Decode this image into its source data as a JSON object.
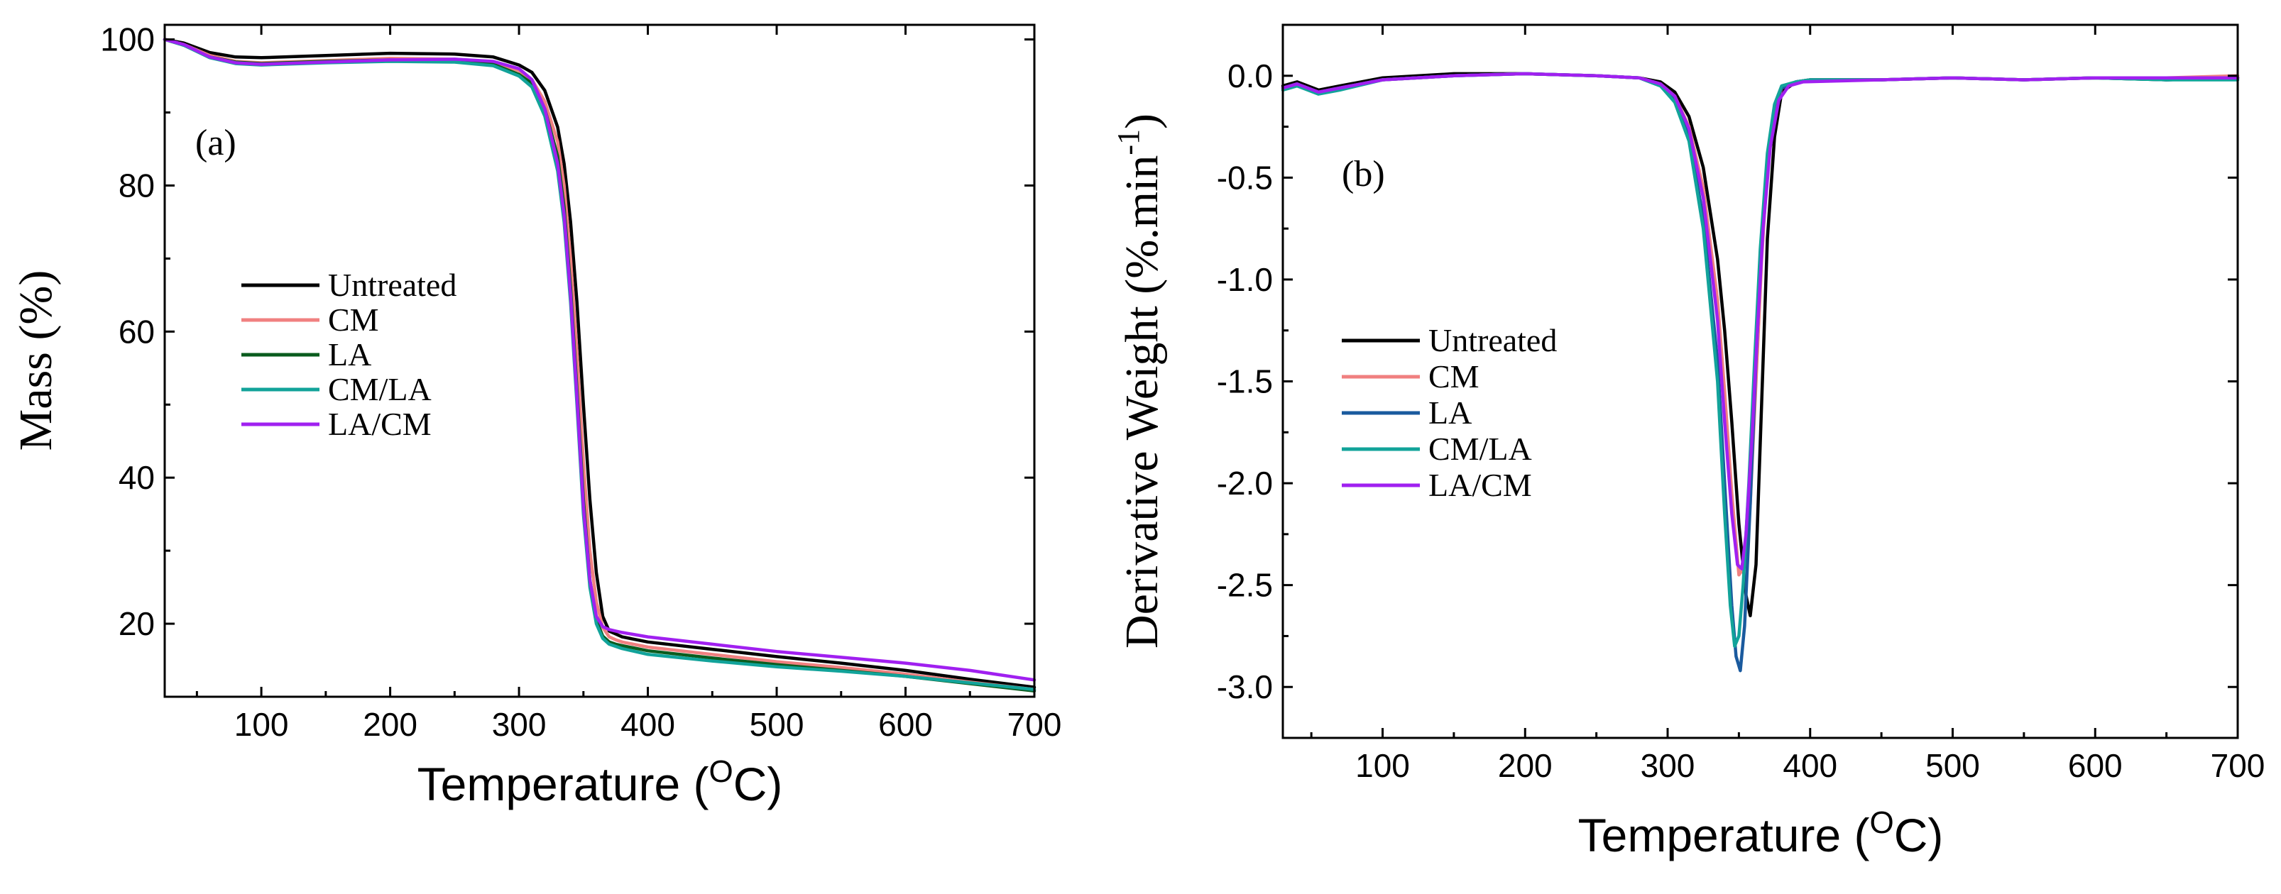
{
  "chart_data": [
    {
      "type": "line",
      "panel_label": "(a)",
      "xlabel": "Temperature (",
      "xlabel_sup": "O",
      "xlabel_end": "C)",
      "ylabel": "Mass (%)",
      "xlim": [
        25,
        700
      ],
      "ylim": [
        10,
        102
      ],
      "xticks": [
        100,
        200,
        300,
        400,
        500,
        600,
        700
      ],
      "yticks": [
        20,
        40,
        60,
        80,
        100
      ],
      "legend_location": "center-left",
      "series": [
        {
          "name": "Untreated",
          "color": "#000000",
          "x": [
            25,
            40,
            60,
            80,
            100,
            150,
            200,
            250,
            280,
            300,
            310,
            320,
            330,
            335,
            340,
            345,
            350,
            355,
            360,
            365,
            370,
            375,
            380,
            400,
            450,
            500,
            550,
            600,
            650,
            700
          ],
          "y": [
            100,
            99.5,
            98.2,
            97.6,
            97.5,
            97.8,
            98.1,
            98,
            97.6,
            96.5,
            95.5,
            93,
            88,
            83,
            75,
            64,
            50,
            37,
            27,
            21,
            19,
            18.6,
            18.2,
            17.5,
            16.5,
            15.5,
            14.6,
            13.6,
            12.4,
            11.3
          ]
        },
        {
          "name": "CM",
          "color": "#f08080",
          "x": [
            25,
            40,
            60,
            80,
            100,
            150,
            200,
            250,
            280,
            300,
            310,
            320,
            330,
            335,
            340,
            345,
            350,
            355,
            360,
            365,
            370,
            375,
            380,
            400,
            450,
            500,
            550,
            600,
            650,
            700
          ],
          "y": [
            100,
            99.3,
            97.8,
            97,
            96.8,
            97.1,
            97.4,
            97.3,
            96.9,
            95.7,
            94.5,
            91.5,
            86,
            80,
            70,
            57,
            42,
            30,
            23,
            19.5,
            18.2,
            17.8,
            17.5,
            16.8,
            15.8,
            14.8,
            14,
            13.1,
            12,
            11
          ]
        },
        {
          "name": "LA",
          "color": "#0a5c1e",
          "x": [
            25,
            40,
            60,
            80,
            100,
            150,
            200,
            250,
            280,
            300,
            310,
            320,
            330,
            335,
            340,
            345,
            350,
            355,
            360,
            365,
            370,
            375,
            380,
            400,
            450,
            500,
            550,
            600,
            650,
            700
          ],
          "y": [
            100,
            99.2,
            97.6,
            96.9,
            96.7,
            97,
            97.2,
            97.1,
            96.6,
            95.2,
            94,
            90.5,
            84,
            77,
            66,
            52,
            37,
            26,
            20.5,
            18.3,
            17.5,
            17.2,
            17,
            16.3,
            15.3,
            14.4,
            13.6,
            12.8,
            11.8,
            10.8
          ]
        },
        {
          "name": "CM/LA",
          "color": "#12a39a",
          "x": [
            25,
            40,
            60,
            80,
            100,
            150,
            200,
            250,
            280,
            300,
            310,
            320,
            330,
            335,
            340,
            345,
            350,
            355,
            360,
            365,
            370,
            375,
            380,
            400,
            450,
            500,
            550,
            600,
            650,
            700
          ],
          "y": [
            100,
            99.2,
            97.5,
            96.7,
            96.5,
            96.8,
            97,
            96.9,
            96.4,
            95,
            93.5,
            89.5,
            82,
            75,
            64,
            50,
            35,
            25,
            20,
            18,
            17.2,
            16.9,
            16.6,
            15.8,
            14.9,
            14.1,
            13.5,
            12.8,
            11.9,
            11
          ]
        },
        {
          "name": "LA/CM",
          "color": "#a020f0",
          "x": [
            25,
            40,
            60,
            80,
            100,
            150,
            200,
            250,
            280,
            300,
            310,
            320,
            330,
            335,
            340,
            345,
            350,
            355,
            360,
            365,
            370,
            375,
            380,
            400,
            450,
            500,
            550,
            600,
            650,
            700
          ],
          "y": [
            100,
            99.3,
            97.6,
            96.8,
            96.6,
            96.9,
            97.2,
            97.3,
            97,
            96,
            94.5,
            90.5,
            83,
            76,
            65,
            51,
            36,
            26,
            21,
            19.6,
            19.2,
            19,
            18.8,
            18.2,
            17.2,
            16.2,
            15.4,
            14.6,
            13.6,
            12.3
          ]
        }
      ]
    },
    {
      "type": "line",
      "panel_label": "(b)",
      "xlabel": "Temperature (",
      "xlabel_sup": "O",
      "xlabel_end": "C)",
      "ylabel": "Derivative Weight (%.min",
      "ylabel_sup": "-1",
      "ylabel_end": ")",
      "xlim": [
        30,
        700
      ],
      "ylim": [
        -3.25,
        0.25
      ],
      "xticks": [
        100,
        200,
        300,
        400,
        500,
        600,
        700
      ],
      "yticks": [
        0.0,
        -0.5,
        -1.0,
        -1.5,
        -2.0,
        -2.5,
        -3.0
      ],
      "ytick_labels": [
        "0.0",
        "-0.5",
        "-1.0",
        "-1.5",
        "-2.0",
        "-2.5",
        "-3.0"
      ],
      "legend_location": "lower-left",
      "series": [
        {
          "name": "Untreated",
          "color": "#000000",
          "x": [
            30,
            40,
            55,
            70,
            100,
            150,
            200,
            250,
            280,
            295,
            305,
            315,
            325,
            335,
            340,
            345,
            350,
            355,
            358,
            362,
            366,
            370,
            375,
            380,
            390,
            400,
            450,
            500,
            550,
            600,
            650,
            700
          ],
          "y": [
            -0.05,
            -0.03,
            -0.07,
            -0.05,
            -0.01,
            0.01,
            0.01,
            0,
            -0.01,
            -0.03,
            -0.08,
            -0.2,
            -0.45,
            -0.9,
            -1.25,
            -1.7,
            -2.2,
            -2.55,
            -2.65,
            -2.4,
            -1.6,
            -0.8,
            -0.3,
            -0.08,
            -0.03,
            -0.02,
            -0.02,
            -0.01,
            -0.02,
            -0.01,
            -0.02,
            -0.01
          ]
        },
        {
          "name": "CM",
          "color": "#f08080",
          "x": [
            30,
            40,
            55,
            70,
            100,
            150,
            200,
            250,
            280,
            295,
            305,
            315,
            325,
            335,
            340,
            345,
            350,
            355,
            358,
            362,
            366,
            370,
            375,
            380,
            390,
            400,
            450,
            500,
            550,
            600,
            650,
            700
          ],
          "y": [
            -0.06,
            -0.04,
            -0.08,
            -0.06,
            -0.02,
            0,
            0.01,
            0,
            -0.01,
            -0.04,
            -0.1,
            -0.25,
            -0.55,
            -1.1,
            -1.55,
            -2.05,
            -2.45,
            -2.4,
            -2.1,
            -1.5,
            -0.9,
            -0.45,
            -0.18,
            -0.06,
            -0.03,
            -0.02,
            -0.02,
            -0.01,
            -0.02,
            -0.01,
            -0.01,
            0
          ]
        },
        {
          "name": "LA",
          "color": "#1a5a9e",
          "x": [
            30,
            40,
            55,
            70,
            100,
            150,
            200,
            250,
            280,
            295,
            305,
            315,
            325,
            335,
            340,
            345,
            348,
            351,
            354,
            358,
            362,
            366,
            370,
            375,
            380,
            390,
            400,
            450,
            500,
            550,
            600,
            650,
            700
          ],
          "y": [
            -0.06,
            -0.04,
            -0.08,
            -0.06,
            -0.02,
            0,
            0.01,
            0,
            -0.01,
            -0.05,
            -0.12,
            -0.3,
            -0.7,
            -1.4,
            -2.0,
            -2.6,
            -2.85,
            -2.92,
            -2.7,
            -2.1,
            -1.4,
            -0.8,
            -0.4,
            -0.15,
            -0.06,
            -0.03,
            -0.02,
            -0.02,
            -0.01,
            -0.02,
            -0.01,
            -0.02,
            -0.01
          ]
        },
        {
          "name": "CM/LA",
          "color": "#12a39a",
          "x": [
            30,
            40,
            55,
            70,
            100,
            150,
            200,
            250,
            280,
            295,
            305,
            315,
            325,
            335,
            340,
            344,
            347,
            350,
            353,
            357,
            361,
            365,
            370,
            375,
            380,
            390,
            400,
            450,
            500,
            550,
            600,
            650,
            700
          ],
          "y": [
            -0.07,
            -0.05,
            -0.09,
            -0.07,
            -0.02,
            0,
            0.01,
            0,
            -0.01,
            -0.05,
            -0.13,
            -0.32,
            -0.75,
            -1.5,
            -2.15,
            -2.6,
            -2.8,
            -2.75,
            -2.5,
            -2.0,
            -1.4,
            -0.85,
            -0.38,
            -0.14,
            -0.05,
            -0.03,
            -0.02,
            -0.02,
            -0.01,
            -0.02,
            -0.01,
            -0.02,
            -0.02
          ]
        },
        {
          "name": "LA/CM",
          "color": "#a020f0",
          "x": [
            30,
            40,
            55,
            70,
            100,
            150,
            200,
            250,
            280,
            295,
            305,
            315,
            325,
            335,
            340,
            345,
            349,
            352,
            355,
            359,
            363,
            367,
            372,
            378,
            385,
            395,
            450,
            500,
            550,
            600,
            650,
            700
          ],
          "y": [
            -0.06,
            -0.04,
            -0.08,
            -0.06,
            -0.02,
            0,
            0.01,
            0,
            -0.01,
            -0.04,
            -0.1,
            -0.26,
            -0.6,
            -1.2,
            -1.7,
            -2.15,
            -2.4,
            -2.42,
            -2.25,
            -1.8,
            -1.25,
            -0.75,
            -0.35,
            -0.12,
            -0.05,
            -0.03,
            -0.02,
            -0.01,
            -0.02,
            -0.01,
            -0.01,
            -0.01
          ]
        }
      ]
    }
  ]
}
